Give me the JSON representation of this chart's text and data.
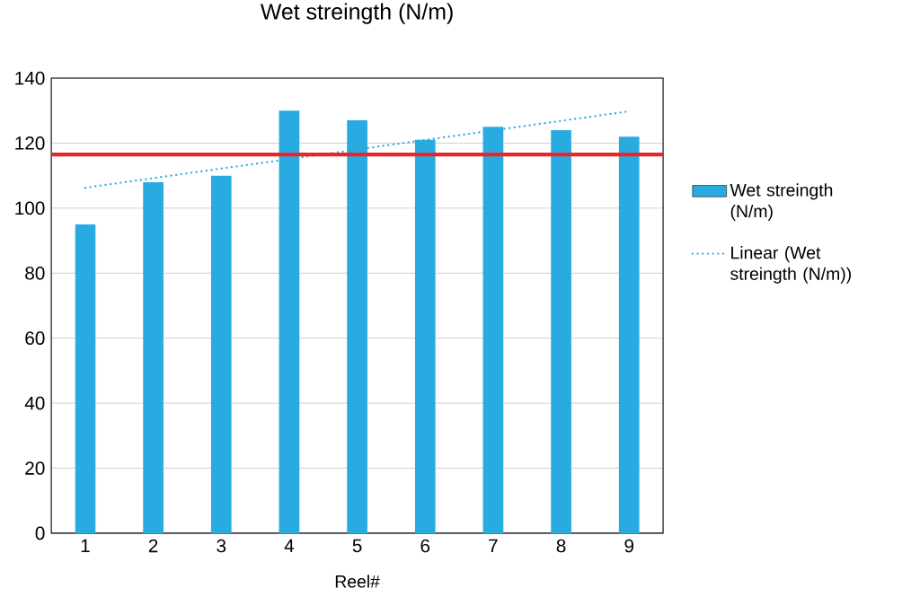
{
  "chart_data": {
    "type": "bar",
    "title": "Wet streingth (N/m)",
    "xlabel": "Reel#",
    "x": [
      1,
      2,
      3,
      4,
      5,
      6,
      7,
      8,
      9
    ],
    "xlim": [
      0.5,
      9.5
    ],
    "xticks": [
      1,
      2,
      3,
      4,
      5,
      6,
      7,
      8,
      9
    ],
    "ylim": [
      0,
      140
    ],
    "yticks": [
      0,
      20,
      40,
      60,
      80,
      100,
      120,
      140
    ],
    "grid": "y",
    "legend": "right",
    "series": [
      {
        "name": "Wet streingth (N/m)",
        "color": "#29abe2",
        "values": [
          95,
          108,
          110,
          130,
          127,
          121,
          125,
          124,
          122
        ]
      },
      {
        "name": "Linear (Wet streingth (N/m))",
        "type": "line",
        "line_style": "dotted",
        "color": "#29abe2",
        "x": [
          1,
          9
        ],
        "values": [
          106.3,
          129.8
        ]
      }
    ],
    "ref_lines": [
      {
        "axis": "y",
        "value": 116.5,
        "color": "#e8262a"
      }
    ]
  }
}
